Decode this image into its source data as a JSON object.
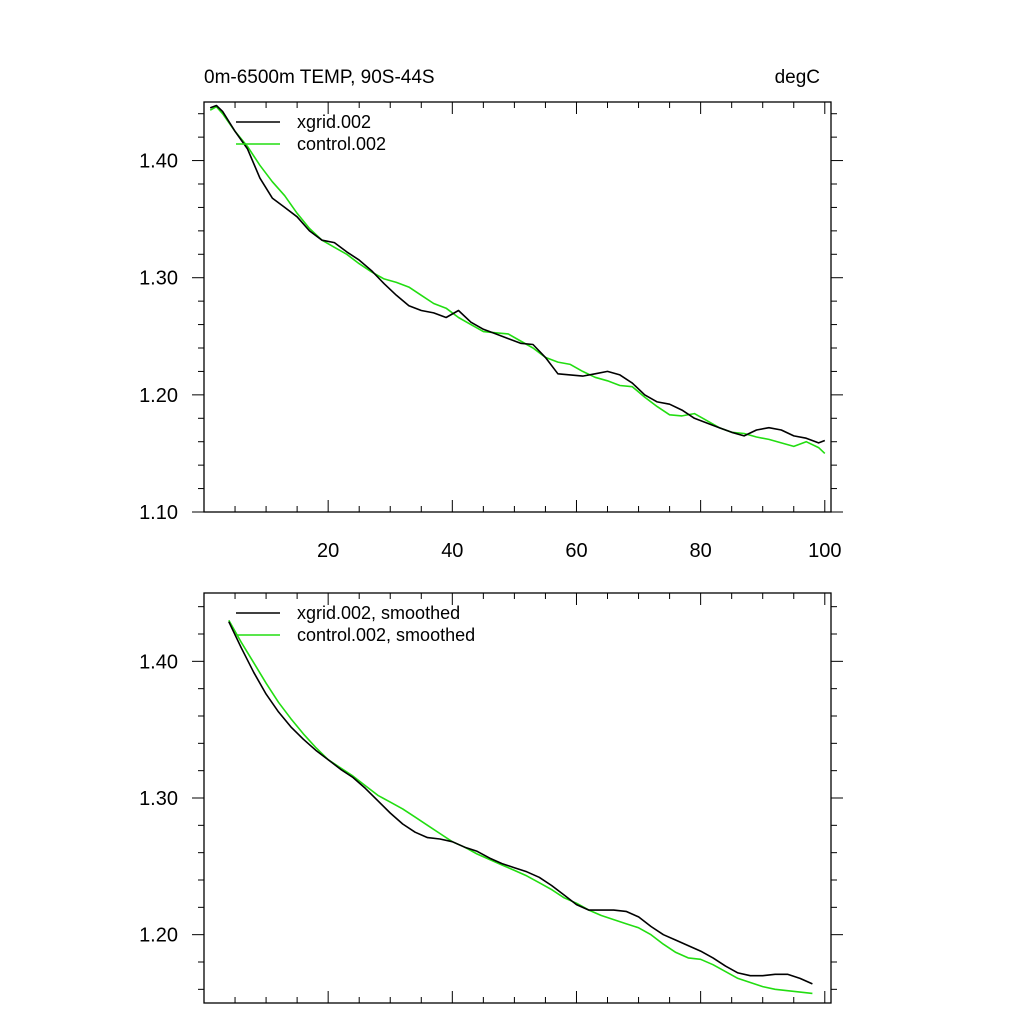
{
  "chart_data": [
    {
      "type": "line",
      "title_left": "0m-6500m TEMP, 90S-44S",
      "title_right": "degC",
      "xlabel": "",
      "ylabel": "",
      "xlim": [
        0,
        101
      ],
      "ylim": [
        1.1,
        1.45
      ],
      "xticks": [
        20,
        40,
        60,
        80,
        100
      ],
      "xtick_labels": [
        "20",
        "40",
        "60",
        "80",
        "100"
      ],
      "yticks": [
        1.1,
        1.2,
        1.3,
        1.4
      ],
      "ytick_labels": [
        "1.10",
        "1.20",
        "1.30",
        "1.40"
      ],
      "legend": "top-left",
      "series": [
        {
          "name": "xgrid.002",
          "color": "#000000",
          "x": [
            1,
            2,
            3,
            5,
            7,
            9,
            11,
            13,
            15,
            17,
            19,
            21,
            23,
            25,
            27,
            29,
            31,
            33,
            35,
            37,
            39,
            41,
            43,
            45,
            47,
            49,
            51,
            53,
            55,
            57,
            59,
            61,
            63,
            65,
            67,
            69,
            71,
            73,
            75,
            77,
            79,
            81,
            83,
            85,
            87,
            89,
            91,
            93,
            95,
            97,
            99,
            100
          ],
          "values": [
            1.445,
            1.447,
            1.442,
            1.425,
            1.41,
            1.385,
            1.368,
            1.36,
            1.352,
            1.34,
            1.332,
            1.33,
            1.322,
            1.315,
            1.306,
            1.295,
            1.285,
            1.276,
            1.272,
            1.27,
            1.266,
            1.272,
            1.262,
            1.256,
            1.252,
            1.248,
            1.244,
            1.243,
            1.232,
            1.218,
            1.217,
            1.216,
            1.218,
            1.22,
            1.217,
            1.21,
            1.2,
            1.194,
            1.192,
            1.187,
            1.18,
            1.176,
            1.172,
            1.168,
            1.165,
            1.17,
            1.172,
            1.17,
            1.165,
            1.163,
            1.159,
            1.161
          ]
        },
        {
          "name": "control.002",
          "color": "#22dd11",
          "x": [
            1,
            2,
            3,
            5,
            7,
            9,
            11,
            13,
            15,
            17,
            19,
            21,
            23,
            25,
            27,
            29,
            31,
            33,
            35,
            37,
            39,
            41,
            43,
            45,
            47,
            49,
            51,
            53,
            55,
            57,
            59,
            61,
            63,
            65,
            67,
            69,
            71,
            73,
            75,
            77,
            79,
            81,
            83,
            85,
            87,
            89,
            91,
            93,
            95,
            97,
            99,
            100
          ],
          "values": [
            1.443,
            1.446,
            1.44,
            1.425,
            1.412,
            1.396,
            1.382,
            1.37,
            1.355,
            1.342,
            1.332,
            1.326,
            1.32,
            1.312,
            1.305,
            1.299,
            1.296,
            1.292,
            1.285,
            1.278,
            1.274,
            1.266,
            1.26,
            1.254,
            1.253,
            1.252,
            1.246,
            1.24,
            1.232,
            1.228,
            1.226,
            1.22,
            1.215,
            1.212,
            1.208,
            1.207,
            1.198,
            1.19,
            1.183,
            1.182,
            1.184,
            1.178,
            1.172,
            1.168,
            1.167,
            1.164,
            1.162,
            1.159,
            1.156,
            1.16,
            1.155,
            1.15
          ]
        }
      ]
    },
    {
      "type": "line",
      "title_left": "",
      "title_right": "",
      "xlabel": "",
      "ylabel": "",
      "xlim": [
        0,
        101
      ],
      "ylim": [
        1.15,
        1.45
      ],
      "xticks": [
        20,
        40,
        60,
        80,
        100
      ],
      "xtick_labels": [],
      "yticks": [
        1.2,
        1.3,
        1.4
      ],
      "ytick_labels": [
        "1.20",
        "1.30",
        "1.40"
      ],
      "legend": "top-left",
      "series": [
        {
          "name": "xgrid.002, smoothed",
          "color": "#000000",
          "x": [
            4,
            6,
            8,
            10,
            12,
            14,
            16,
            18,
            20,
            22,
            24,
            26,
            28,
            30,
            32,
            34,
            36,
            38,
            40,
            42,
            44,
            46,
            48,
            50,
            52,
            54,
            56,
            58,
            60,
            62,
            64,
            66,
            68,
            70,
            72,
            74,
            76,
            78,
            80,
            82,
            84,
            86,
            88,
            90,
            92,
            94,
            96,
            98
          ],
          "values": [
            1.429,
            1.41,
            1.392,
            1.376,
            1.363,
            1.352,
            1.343,
            1.335,
            1.328,
            1.321,
            1.315,
            1.307,
            1.298,
            1.289,
            1.281,
            1.275,
            1.271,
            1.27,
            1.268,
            1.264,
            1.261,
            1.256,
            1.252,
            1.249,
            1.246,
            1.242,
            1.236,
            1.229,
            1.222,
            1.218,
            1.218,
            1.218,
            1.217,
            1.213,
            1.206,
            1.2,
            1.196,
            1.192,
            1.188,
            1.183,
            1.177,
            1.172,
            1.17,
            1.17,
            1.171,
            1.171,
            1.168,
            1.164
          ]
        },
        {
          "name": "control.002, smoothed",
          "color": "#22dd11",
          "x": [
            4,
            6,
            8,
            10,
            12,
            14,
            16,
            18,
            20,
            22,
            24,
            26,
            28,
            30,
            32,
            34,
            36,
            38,
            40,
            42,
            44,
            46,
            48,
            50,
            52,
            54,
            56,
            58,
            60,
            62,
            64,
            66,
            68,
            70,
            72,
            74,
            76,
            78,
            80,
            82,
            84,
            86,
            88,
            90,
            92,
            94,
            96,
            98
          ],
          "values": [
            1.43,
            1.414,
            1.399,
            1.384,
            1.37,
            1.358,
            1.347,
            1.337,
            1.328,
            1.322,
            1.316,
            1.309,
            1.302,
            1.297,
            1.292,
            1.286,
            1.28,
            1.274,
            1.268,
            1.264,
            1.259,
            1.255,
            1.251,
            1.247,
            1.243,
            1.238,
            1.233,
            1.227,
            1.223,
            1.218,
            1.214,
            1.211,
            1.208,
            1.205,
            1.2,
            1.193,
            1.187,
            1.183,
            1.182,
            1.178,
            1.173,
            1.168,
            1.165,
            1.162,
            1.16,
            1.159,
            1.158,
            1.157
          ]
        }
      ]
    }
  ]
}
